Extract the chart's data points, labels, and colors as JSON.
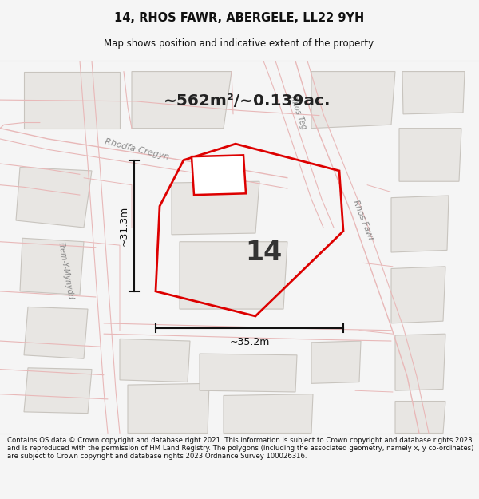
{
  "title_line1": "14, RHOS FAWR, ABERGELE, LL22 9YH",
  "title_line2": "Map shows position and indicative extent of the property.",
  "area_text": "~562m²/~0.139ac.",
  "number_label": "14",
  "dim_width": "~35.2m",
  "dim_height": "~31.3m",
  "footer_text": "Contains OS data © Crown copyright and database right 2021. This information is subject to Crown copyright and database rights 2023 and is reproduced with the permission of HM Land Registry. The polygons (including the associated geometry, namely x, y co-ordinates) are subject to Crown copyright and database rights 2023 Ordnance Survey 100026316.",
  "bg_color": "#f5f5f5",
  "map_bg": "#f7f6f4",
  "road_edge_color": "#e8b8b8",
  "plot_outline_color": "#dd0000",
  "building_fill": "#e8e6e3",
  "building_outline": "#c8c4be",
  "dim_line_color": "#111111",
  "text_color": "#111111",
  "road_label_color": "#888888",
  "footer_bg": "#ffffff",
  "title_bg": "#ffffff",
  "separator_color": "#dddddd"
}
